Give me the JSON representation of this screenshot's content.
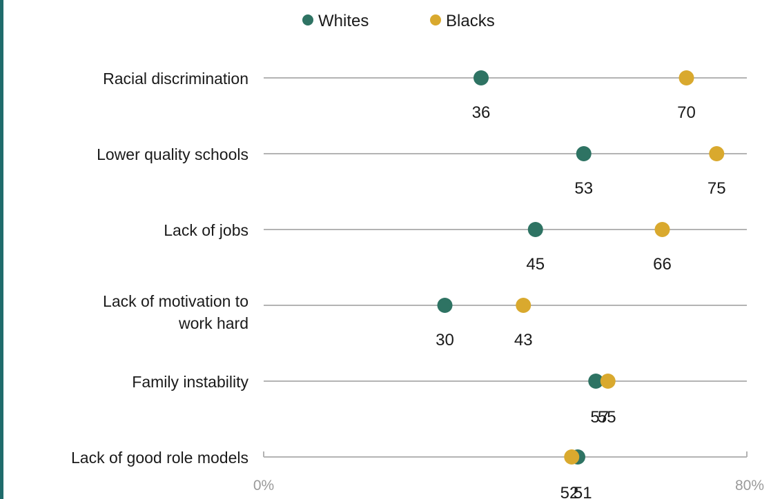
{
  "chart_data": {
    "type": "dot",
    "categories": [
      [
        "Racial discrimination"
      ],
      [
        "Lower quality schools"
      ],
      [
        "Lack of jobs"
      ],
      [
        "Lack of motivation to",
        "work hard"
      ],
      [
        "Family instability"
      ],
      [
        "Lack of good role models"
      ]
    ],
    "series": [
      {
        "name": "Whites",
        "color": "#2e7363",
        "values": [
          36,
          53,
          45,
          30,
          55,
          52
        ]
      },
      {
        "name": "Blacks",
        "color": "#d9a92e",
        "values": [
          70,
          75,
          66,
          43,
          57,
          51
        ]
      }
    ],
    "xlim": [
      0,
      80
    ],
    "xticks": [
      {
        "value": 0,
        "label": "0%"
      },
      {
        "value": 80,
        "label": "80%"
      }
    ],
    "legend_position": "top"
  }
}
